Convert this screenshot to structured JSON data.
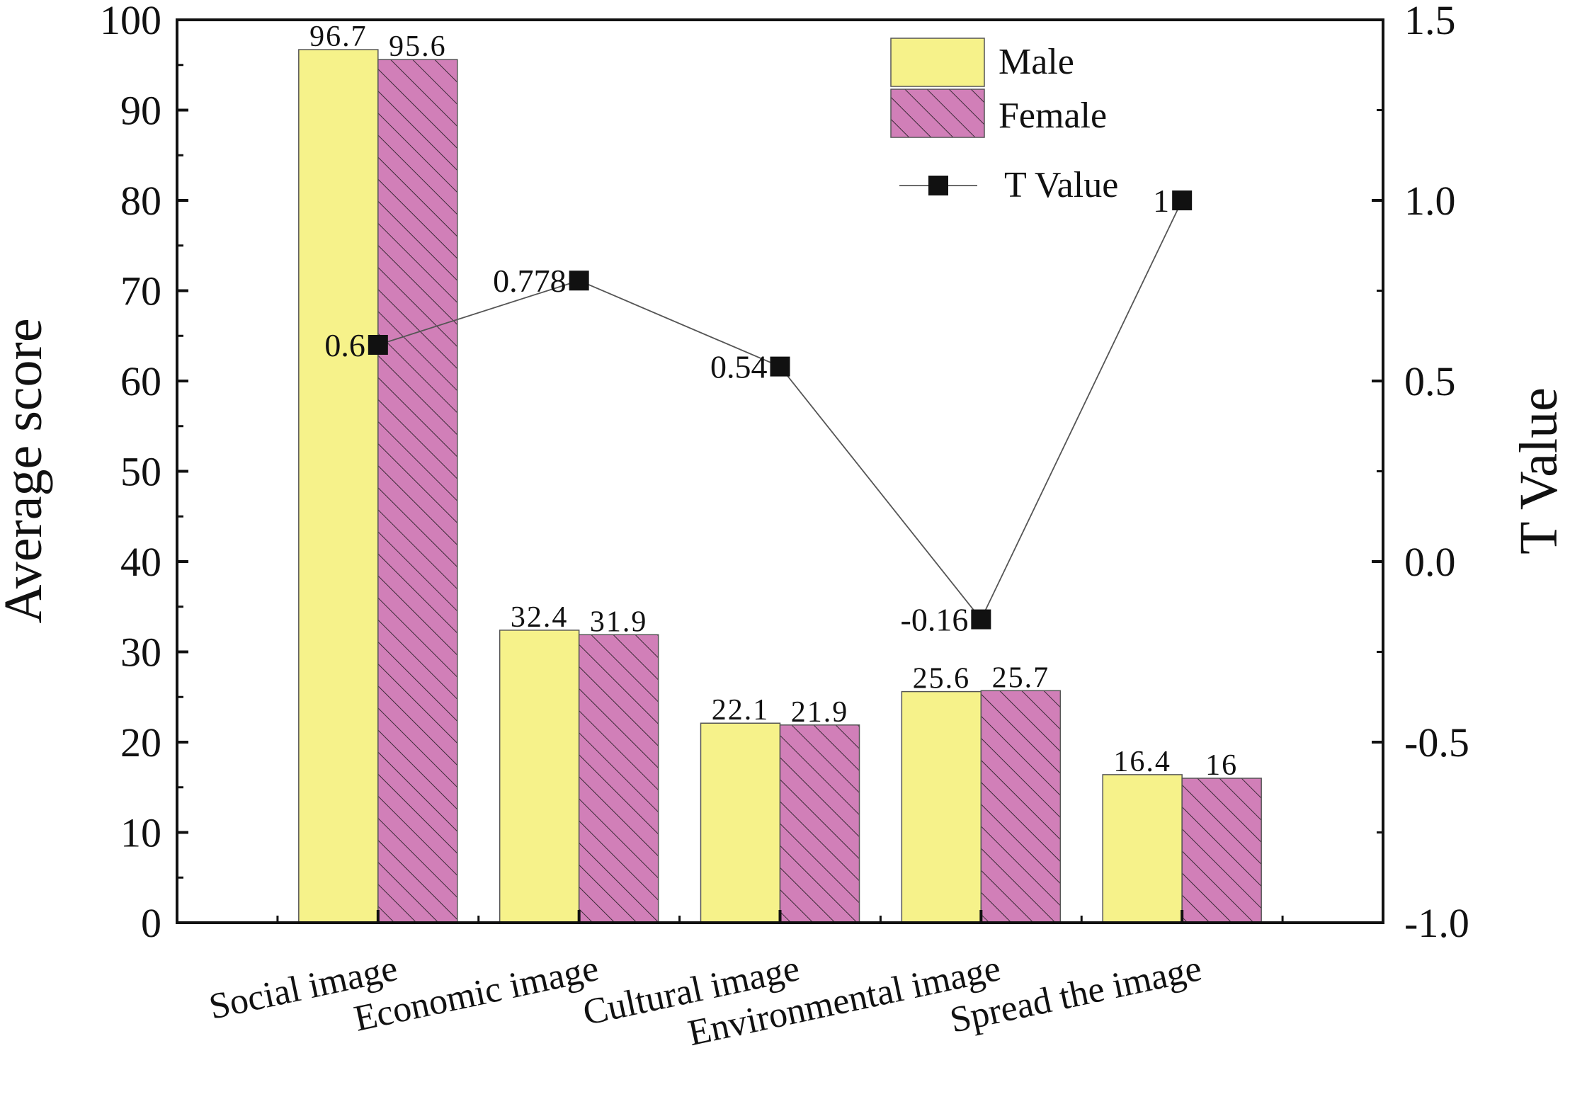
{
  "chart_data": {
    "type": "bar",
    "categories": [
      "Social image",
      "Economic image",
      "Cultural image",
      "Environmental image",
      "Spread the image"
    ],
    "series": [
      {
        "name": "Male",
        "values": [
          96.7,
          32.4,
          22.1,
          25.6,
          16.4
        ],
        "labels": [
          "96.7",
          "32.4",
          "22.1",
          "25.6",
          "16.4"
        ],
        "color": "#f6f28a",
        "pattern": "none"
      },
      {
        "name": "Female",
        "values": [
          95.6,
          31.9,
          21.9,
          25.7,
          16
        ],
        "labels": [
          "95.6",
          "31.9",
          "21.9",
          "25.7",
          "16"
        ],
        "color": "#d17fb8",
        "pattern": "diagonal-hatch"
      }
    ],
    "line_series": {
      "name": "T Value",
      "axis": "right",
      "values": [
        0.6,
        0.778,
        0.54,
        -0.16,
        1
      ],
      "labels": [
        "0.6",
        "0.778",
        "0.54",
        "-0.16",
        "1"
      ],
      "marker": "square",
      "color": "#111111"
    },
    "ylabel": "Average score",
    "ylim": [
      0,
      100
    ],
    "yticks": [
      "0",
      "10",
      "20",
      "30",
      "40",
      "50",
      "60",
      "70",
      "80",
      "90",
      "100"
    ],
    "y2label": "T Value",
    "y2lim": [
      -1.0,
      1.5
    ],
    "y2ticks": [
      "-1.0",
      "-0.5",
      "0.0",
      "0.5",
      "1.0",
      "1.5"
    ],
    "legend_position": "top-right",
    "grid": false
  }
}
